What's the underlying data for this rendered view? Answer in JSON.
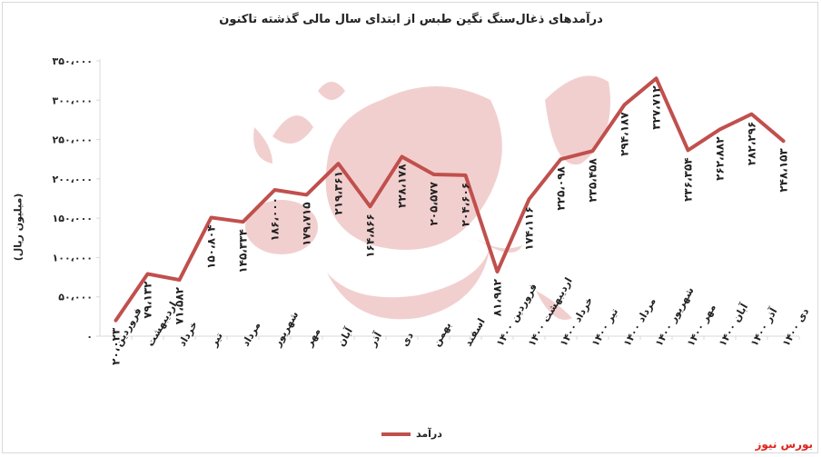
{
  "title": "درآمدهای ذغال‌سنگ نگین طبس از ابتدای سال مالی گذشته تاکنون",
  "brand": "بورس نیوز",
  "colors": {
    "series": "#c0504d",
    "watermark": "#e8a9a8",
    "axis": "#d9d9d9",
    "text": "#222222",
    "brand": "#e0241b"
  },
  "chart_data": {
    "type": "line",
    "title": "درآمدهای ذغال‌سنگ نگین طبس از ابتدای سال مالی گذشته تاکنون",
    "xlabel": "",
    "ylabel": "(میلیون ریال)",
    "ylim": [
      0,
      350000
    ],
    "y_ticks": [
      0,
      50000,
      100000,
      150000,
      200000,
      250000,
      300000,
      350000
    ],
    "y_tick_labels": [
      "۰",
      "۵۰،۰۰۰",
      "۱۰۰،۰۰۰",
      "۱۵۰،۰۰۰",
      "۲۰۰،۰۰۰",
      "۲۵۰،۰۰۰",
      "۳۰۰،۰۰۰",
      "۳۵۰،۰۰۰"
    ],
    "grid": false,
    "legend_position": "bottom",
    "categories": [
      "فروردین",
      "اردیبهشت",
      "خرداد",
      "تیر",
      "مرداد",
      "شهریور",
      "مهر",
      "آبان",
      "آذر",
      "دی",
      "بهمن",
      "اسفند",
      "فروردین ۱۴۰۰",
      "اردیبهشت ۱۴۰۰",
      "خرداد ۱۴۰۰",
      "تیر ۱۴۰۰",
      "مرداد ۱۴۰۰",
      "شهریور ۱۴۰۰",
      "مهر ۱۴۰۰",
      "آبان ۱۴۰۰",
      "آذر ۱۴۰۰",
      "دی ۱۴۰۰"
    ],
    "series": [
      {
        "name": "درآمد",
        "values": [
          20023,
          79132,
          71582,
          150804,
          145334,
          186000,
          179715,
          219361,
          164866,
          228178,
          205577,
          204606,
          81982,
          174116,
          225098,
          235458,
          294187,
          327712,
          236354,
          262882,
          282296,
          248153
        ],
        "labels": [
          "۲۰،۰۲۳",
          "۷۹،۱۳۲",
          "۷۱،۵۸۲",
          "۱۵۰،۸۰۴",
          "۱۴۵،۳۳۴",
          "۱۸۶،۰۰۰",
          "۱۷۹،۷۱۵",
          "۲۱۹،۳۶۱",
          "۱۶۴،۸۶۶",
          "۲۲۸،۱۷۸",
          "۲۰۵،۵۷۷",
          "۲۰۴،۶۰۶",
          "۸۱،۹۸۲",
          "۱۷۴،۱۱۶",
          "۲۲۵،۰۹۸",
          "۲۳۵،۴۵۸",
          "۲۹۴،۱۸۷",
          "۳۲۷،۷۱۲",
          "۲۳۶،۳۵۴",
          "۲۶۲،۸۸۲",
          "۲۸۲،۲۹۶",
          "۲۴۸،۱۵۳"
        ]
      }
    ]
  }
}
